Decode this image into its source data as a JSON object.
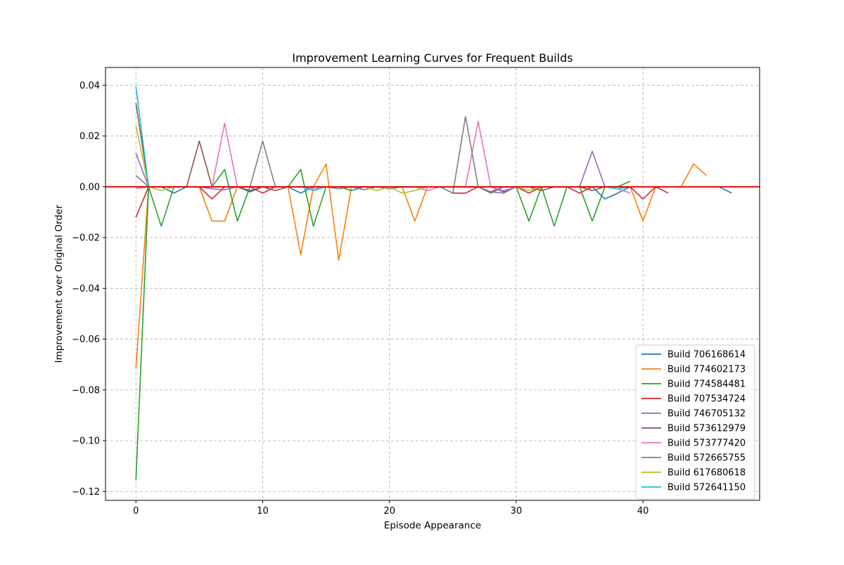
{
  "chart_data": {
    "type": "line",
    "title": "Improvement Learning Curves for Frequent Builds",
    "xlabel": "Episode Appearance",
    "ylabel": "Improvement over Original Order",
    "xlim": [
      -2.4,
      49.2
    ],
    "ylim": [
      -0.1235,
      0.047
    ],
    "xticks": [
      0,
      10,
      20,
      30,
      40
    ],
    "xtick_labels": [
      "0",
      "10",
      "20",
      "30",
      "40"
    ],
    "yticks": [
      0.04,
      0.02,
      0.0,
      -0.02,
      -0.04,
      -0.06,
      -0.08,
      -0.1,
      -0.12
    ],
    "ytick_labels": [
      "0.04",
      "0.02",
      "0.00",
      "−0.02",
      "−0.04",
      "−0.06",
      "−0.08",
      "−0.10",
      "−0.12"
    ],
    "grid": true,
    "legend_position": "lower-right",
    "reference_line": {
      "y": 0,
      "color": "#e00000"
    },
    "series": [
      {
        "name": "Build 706168614",
        "color": "#1f77b4",
        "x": [
          0,
          1,
          2,
          3,
          4,
          5,
          6,
          7,
          8,
          9,
          10,
          11,
          12,
          13,
          14,
          15,
          16,
          17,
          18,
          19,
          20,
          21,
          22,
          23,
          24,
          25,
          26,
          27,
          28,
          29,
          30,
          31,
          32,
          33,
          34,
          35,
          36,
          37,
          38,
          39,
          40,
          41,
          42,
          43,
          44,
          45,
          46,
          47
        ],
        "y": [
          0,
          0,
          0,
          -0.0025,
          0,
          0,
          0,
          0,
          0,
          -0.002,
          0,
          0,
          0,
          -0.0025,
          0,
          0,
          0,
          0,
          0,
          0,
          0,
          0,
          0,
          0,
          0,
          0,
          0,
          0,
          0,
          -0.002,
          0,
          0,
          0,
          0,
          0,
          0,
          0,
          -0.0048,
          -0.0025,
          0,
          0,
          0,
          0,
          0,
          0,
          0,
          0,
          -0.0025
        ]
      },
      {
        "name": "Build 774602173",
        "color": "#ff7f0e",
        "x": [
          0,
          1,
          2,
          3,
          4,
          5,
          6,
          7,
          8,
          9,
          10,
          11,
          12,
          13,
          14,
          15,
          16,
          17,
          18,
          19,
          20,
          21,
          22,
          23,
          24,
          25,
          26,
          27,
          28,
          29,
          30,
          31,
          32,
          33,
          34,
          35,
          36,
          37,
          38,
          39,
          40,
          41,
          42,
          43,
          44,
          45
        ],
        "y": [
          -0.0715,
          0,
          0,
          0,
          0,
          0,
          -0.0135,
          -0.0135,
          0,
          0,
          0,
          0,
          0,
          -0.0268,
          0,
          0.009,
          -0.029,
          0,
          0,
          0,
          0,
          0,
          -0.0135,
          0,
          0,
          0,
          0,
          0,
          0,
          0,
          0,
          0,
          0,
          0,
          0,
          0,
          0,
          0,
          0,
          0,
          -0.0135,
          0,
          0,
          0,
          0.009,
          0.0045
        ]
      },
      {
        "name": "Build 774584481",
        "color": "#2ca02c",
        "x": [
          0,
          1,
          2,
          3,
          4,
          5,
          6,
          7,
          8,
          9,
          10,
          11,
          12,
          13,
          14,
          15,
          16,
          17,
          18,
          19,
          20,
          21,
          22,
          23,
          24,
          25,
          26,
          27,
          28,
          29,
          30,
          31,
          32,
          33,
          34,
          35,
          36,
          37,
          38,
          39
        ],
        "y": [
          -0.1155,
          0,
          -0.0155,
          0,
          0,
          0,
          0,
          0.0068,
          -0.0135,
          0,
          0,
          0,
          0,
          0.0068,
          -0.0155,
          0,
          0,
          -0.0015,
          0,
          0,
          0,
          0,
          0,
          0,
          0,
          0,
          0,
          0,
          0,
          0,
          0,
          -0.0135,
          0,
          -0.0155,
          0,
          0,
          -0.0135,
          0,
          0,
          0.0022
        ]
      },
      {
        "name": "Build 707534724",
        "color": "#d62728",
        "x": [
          0,
          1,
          2,
          3,
          4,
          5,
          6,
          7,
          8,
          9,
          10,
          11,
          12,
          13,
          14,
          15,
          16,
          17,
          18,
          19,
          20,
          21,
          22,
          23,
          24,
          25,
          26,
          27,
          28,
          29,
          30,
          31,
          32,
          33,
          34,
          35,
          36,
          37,
          38,
          39,
          40,
          41,
          42
        ],
        "y": [
          -0.012,
          0,
          0,
          0,
          0,
          0,
          -0.0048,
          0,
          0,
          0,
          -0.0025,
          0,
          0,
          0,
          0,
          0,
          0,
          0,
          0,
          0,
          0,
          0,
          0,
          0,
          0,
          -0.0025,
          -0.0025,
          0,
          -0.002,
          0,
          0,
          -0.0025,
          0,
          0,
          0,
          -0.0025,
          0,
          0,
          0,
          0,
          -0.0048,
          0,
          -0.0025
        ]
      },
      {
        "name": "Build 746705132",
        "color": "#9467bd",
        "x": [
          0,
          1,
          2,
          3,
          4,
          5,
          6,
          7,
          8,
          9,
          10,
          11,
          12,
          13,
          14,
          15,
          16,
          17,
          18,
          19,
          20,
          21,
          22,
          23,
          24,
          25,
          26,
          27,
          28,
          29,
          30,
          31,
          32,
          33,
          34,
          35,
          36,
          37,
          38,
          39
        ],
        "y": [
          0.0132,
          0,
          0,
          0,
          0,
          0,
          -0.0008,
          -0.0012,
          0,
          0,
          0,
          0,
          0,
          0,
          0,
          0,
          0,
          0,
          -0.0012,
          0,
          0,
          0,
          0,
          0,
          0,
          0,
          0,
          0,
          -0.002,
          -0.0025,
          0,
          0,
          0,
          0,
          0,
          0,
          0.014,
          0,
          0,
          0
        ]
      },
      {
        "name": "Build 573612979",
        "color": "#8c564b",
        "x": [
          0,
          1,
          2,
          3,
          4,
          5,
          6,
          7,
          8,
          9,
          10,
          11,
          12,
          13,
          14,
          15,
          16,
          17,
          18,
          19,
          20,
          21,
          22,
          23,
          24,
          25,
          26,
          27,
          28,
          29,
          30,
          31,
          32,
          33,
          34,
          35,
          36,
          37,
          38,
          39
        ],
        "y": [
          0.033,
          0,
          0,
          0,
          0,
          0.018,
          0,
          0,
          0,
          -0.0015,
          0,
          -0.0015,
          0,
          0,
          0,
          0,
          0,
          0,
          0,
          0,
          0,
          0,
          0,
          0,
          0,
          0,
          0,
          0,
          -0.0025,
          0,
          0,
          0,
          -0.0015,
          0,
          0,
          0,
          -0.0015,
          0,
          0,
          0
        ]
      },
      {
        "name": "Build 573777420",
        "color": "#e377c2",
        "x": [
          0,
          1,
          2,
          3,
          4,
          5,
          6,
          7,
          8,
          9,
          10,
          11,
          12,
          13,
          14,
          15,
          16,
          17,
          18,
          19,
          20,
          21,
          22,
          23,
          24,
          25,
          26,
          27,
          28,
          29,
          30,
          31,
          32,
          33,
          34,
          35,
          36,
          37,
          38,
          39
        ],
        "y": [
          -0.0008,
          0,
          0,
          0,
          0,
          0,
          0,
          0.025,
          0,
          0,
          0,
          0,
          0,
          0,
          -0.0008,
          0,
          0,
          0,
          0,
          0,
          0,
          0,
          0,
          -0.0015,
          0,
          0,
          0,
          0.0257,
          0,
          -0.0015,
          0,
          0,
          0,
          0,
          0,
          0,
          0,
          0,
          -0.0008,
          -0.0025
        ]
      },
      {
        "name": "Build 572665755",
        "color": "#7f7f7f",
        "x": [
          0,
          1,
          2,
          3,
          4,
          5,
          6,
          7,
          8,
          9,
          10,
          11,
          12,
          13,
          14,
          15,
          16,
          17,
          18,
          19,
          20,
          21,
          22,
          23,
          24,
          25,
          26,
          27,
          28,
          29,
          30
        ],
        "y": [
          0.0045,
          0,
          0,
          0,
          0,
          0,
          0,
          0,
          0,
          0,
          0.018,
          0,
          0,
          0,
          0,
          0,
          -0.0008,
          0,
          0,
          0,
          -0.0008,
          0,
          0,
          0,
          0,
          -0.0025,
          0.0277,
          0,
          -0.0025,
          0,
          0
        ]
      },
      {
        "name": "Build 617680618",
        "color": "#bcbd22",
        "x": [
          0,
          1,
          2,
          3,
          4,
          5,
          6,
          7,
          8,
          9,
          10,
          11,
          12,
          13,
          14,
          15,
          16,
          17,
          18,
          19,
          20,
          21,
          22,
          23,
          24,
          25,
          26,
          27,
          28,
          29,
          30,
          31,
          32
        ],
        "y": [
          0.0242,
          0,
          -0.0015,
          0,
          0,
          0,
          0,
          0,
          0,
          0,
          0,
          0,
          0,
          0,
          0,
          0,
          0,
          0,
          0,
          -0.0015,
          0,
          -0.0025,
          -0.0015,
          0,
          0,
          0,
          0,
          0,
          0,
          0,
          0,
          -0.0015,
          0
        ]
      },
      {
        "name": "Build 572641150",
        "color": "#17becf",
        "x": [
          0,
          1,
          2,
          3,
          4,
          5,
          6,
          7,
          8,
          9,
          10,
          11,
          12,
          13,
          14,
          15,
          16,
          17,
          18,
          19,
          20,
          21,
          22,
          23,
          24,
          25,
          26,
          27,
          28,
          29,
          30,
          31,
          32,
          33,
          34,
          35,
          36,
          37,
          38,
          39
        ],
        "y": [
          0.0395,
          0,
          0,
          0,
          0,
          0,
          0,
          0,
          0,
          0,
          0,
          0,
          0,
          0,
          -0.0015,
          0,
          0,
          0,
          0,
          0,
          0,
          0,
          0,
          0,
          0,
          0,
          0,
          0,
          0,
          0,
          0,
          0,
          0,
          0,
          0,
          0,
          0,
          0,
          -0.0008,
          0
        ]
      }
    ]
  }
}
